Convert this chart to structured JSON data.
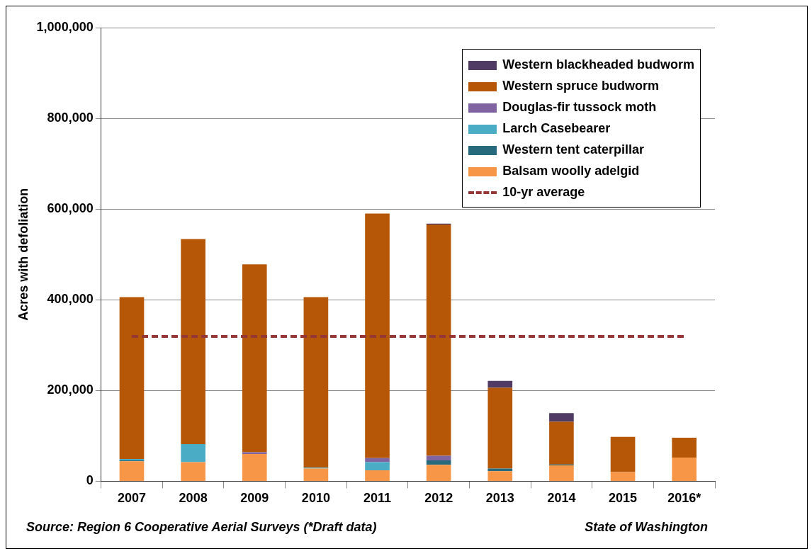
{
  "chart_data": {
    "type": "bar",
    "stacked": true,
    "ylabel": "Acres with defoliation",
    "categories": [
      "2007",
      "2008",
      "2009",
      "2010",
      "2011",
      "2012",
      "2013",
      "2014",
      "2015",
      "2016*"
    ],
    "series": [
      {
        "name": "Balsam woolly adelgid",
        "color": "#f79646",
        "values": [
          44000,
          42000,
          60000,
          28000,
          24000,
          36000,
          22000,
          35000,
          20000,
          52000
        ]
      },
      {
        "name": "Western tent caterpillar",
        "color": "#276a7c",
        "values": [
          2000,
          null,
          null,
          null,
          null,
          10000,
          6000,
          2000,
          null,
          null
        ]
      },
      {
        "name": "Larch Casebearer",
        "color": "#4bacc6",
        "values": [
          3000,
          40000,
          null,
          2000,
          18000,
          null,
          null,
          null,
          null,
          null
        ]
      },
      {
        "name": "Douglas-fir tussock moth",
        "color": "#8064a2",
        "values": [
          null,
          null,
          4000,
          null,
          9000,
          10000,
          null,
          null,
          null,
          null
        ]
      },
      {
        "name": "Western spruce budworm",
        "color": "#b55707",
        "values": [
          357000,
          452000,
          414000,
          376000,
          539000,
          510000,
          178000,
          94000,
          78000,
          44000
        ]
      },
      {
        "name": "Western blackheaded budworm",
        "color": "#4f3b63",
        "values": [
          null,
          null,
          null,
          null,
          null,
          2000,
          15000,
          19000,
          null,
          null
        ]
      },
      {
        "name": "10-yr average",
        "type": "line",
        "line_style": "dashed",
        "color": "#953735",
        "values": [
          319000,
          319000,
          319000,
          319000,
          319000,
          319000,
          319000,
          319000,
          319000,
          319000
        ]
      }
    ],
    "ylim": [
      0,
      1000000
    ],
    "yticks": [
      0,
      {
        "value": 200000,
        "label": "200,000"
      },
      {
        "value": 400000,
        "label": "400,000"
      },
      {
        "value": 600000,
        "label": "600,000"
      },
      {
        "value": 800000,
        "label": "800,000"
      },
      {
        "value": 1000000,
        "label": "1,000,000"
      }
    ],
    "grid": "y",
    "legend": "top right",
    "annotations": [
      "Source: Region 6 Cooperative Aerial Surveys (*Draft data)",
      "State of Washington"
    ]
  }
}
